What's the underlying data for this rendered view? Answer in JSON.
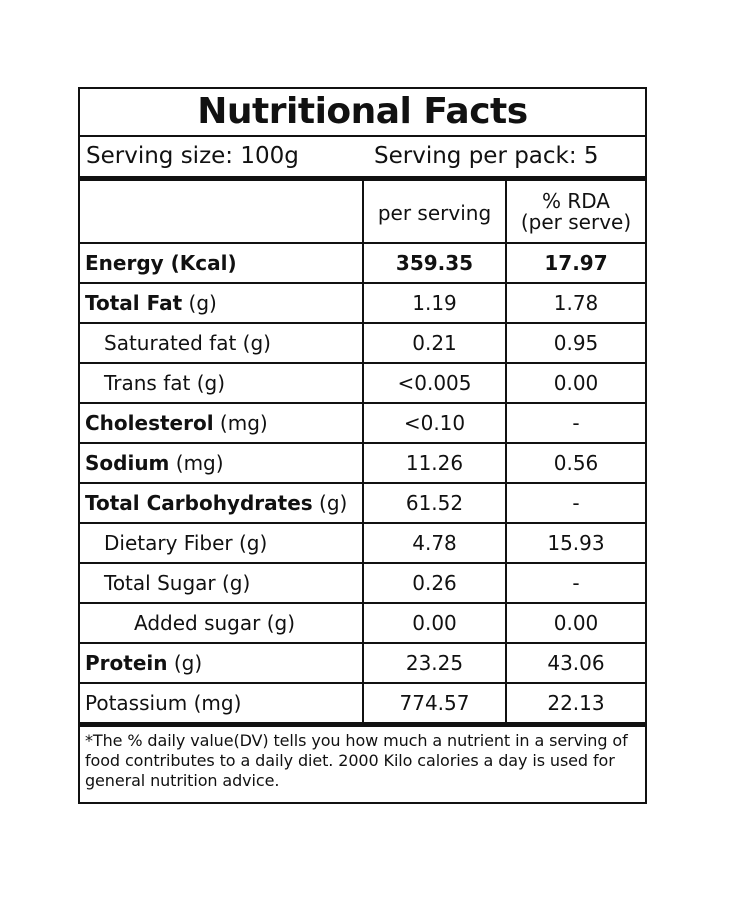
{
  "label": {
    "title": "Nutritional Facts",
    "serving_size": "Serving size: 100g",
    "serving_per_pack": "Serving per pack: 5",
    "col_per_serving": "per serving",
    "col_rda_line1": "% RDA",
    "col_rda_line2": "(per serve)",
    "rows": [
      {
        "name": "Energy",
        "unit": " (Kcal)",
        "bold_name": true,
        "bold_unit": true,
        "indent": 0,
        "per_serving": "359.35",
        "rda": "17.97",
        "bold_values": true
      },
      {
        "name": "Total Fat",
        "unit": " (g)",
        "bold_name": true,
        "bold_unit": false,
        "indent": 0,
        "per_serving": "1.19",
        "rda": "1.78",
        "bold_values": false
      },
      {
        "name": "Saturated fat (g)",
        "unit": "",
        "bold_name": false,
        "bold_unit": false,
        "indent": 1,
        "per_serving": "0.21",
        "rda": "0.95",
        "bold_values": false
      },
      {
        "name": "Trans fat (g)",
        "unit": "",
        "bold_name": false,
        "bold_unit": false,
        "indent": 1,
        "per_serving": "<0.005",
        "rda": "0.00",
        "bold_values": false
      },
      {
        "name": "Cholesterol",
        "unit": " (mg)",
        "bold_name": true,
        "bold_unit": false,
        "indent": 0,
        "per_serving": "<0.10",
        "rda": "-",
        "bold_values": false
      },
      {
        "name": "Sodium",
        "unit": " (mg)",
        "bold_name": true,
        "bold_unit": false,
        "indent": 0,
        "per_serving": "11.26",
        "rda": "0.56",
        "bold_values": false
      },
      {
        "name": "Total Carbohydrates",
        "unit": " (g)",
        "bold_name": true,
        "bold_unit": false,
        "indent": 0,
        "per_serving": "61.52",
        "rda": "-",
        "bold_values": false
      },
      {
        "name": "Dietary Fiber (g)",
        "unit": "",
        "bold_name": false,
        "bold_unit": false,
        "indent": 1,
        "per_serving": "4.78",
        "rda": "15.93",
        "bold_values": false
      },
      {
        "name": "Total Sugar (g)",
        "unit": "",
        "bold_name": false,
        "bold_unit": false,
        "indent": 1,
        "per_serving": "0.26",
        "rda": "-",
        "bold_values": false
      },
      {
        "name": "Added sugar (g)",
        "unit": "",
        "bold_name": false,
        "bold_unit": false,
        "indent": 2,
        "per_serving": "0.00",
        "rda": "0.00",
        "bold_values": false
      },
      {
        "name": "Protein",
        "unit": " (g)",
        "bold_name": true,
        "bold_unit": false,
        "indent": 0,
        "per_serving": "23.25",
        "rda": "43.06",
        "bold_values": false
      },
      {
        "name": "Potassium (mg)",
        "unit": "",
        "bold_name": false,
        "bold_unit": false,
        "indent": 0,
        "per_serving": "774.57",
        "rda": "22.13",
        "bold_values": false
      }
    ],
    "footnote": "*The % daily value(DV) tells you how much a nutrient in a serving of food contributes to a daily diet. 2000 Kilo calories a day is used for general nutrition advice."
  }
}
